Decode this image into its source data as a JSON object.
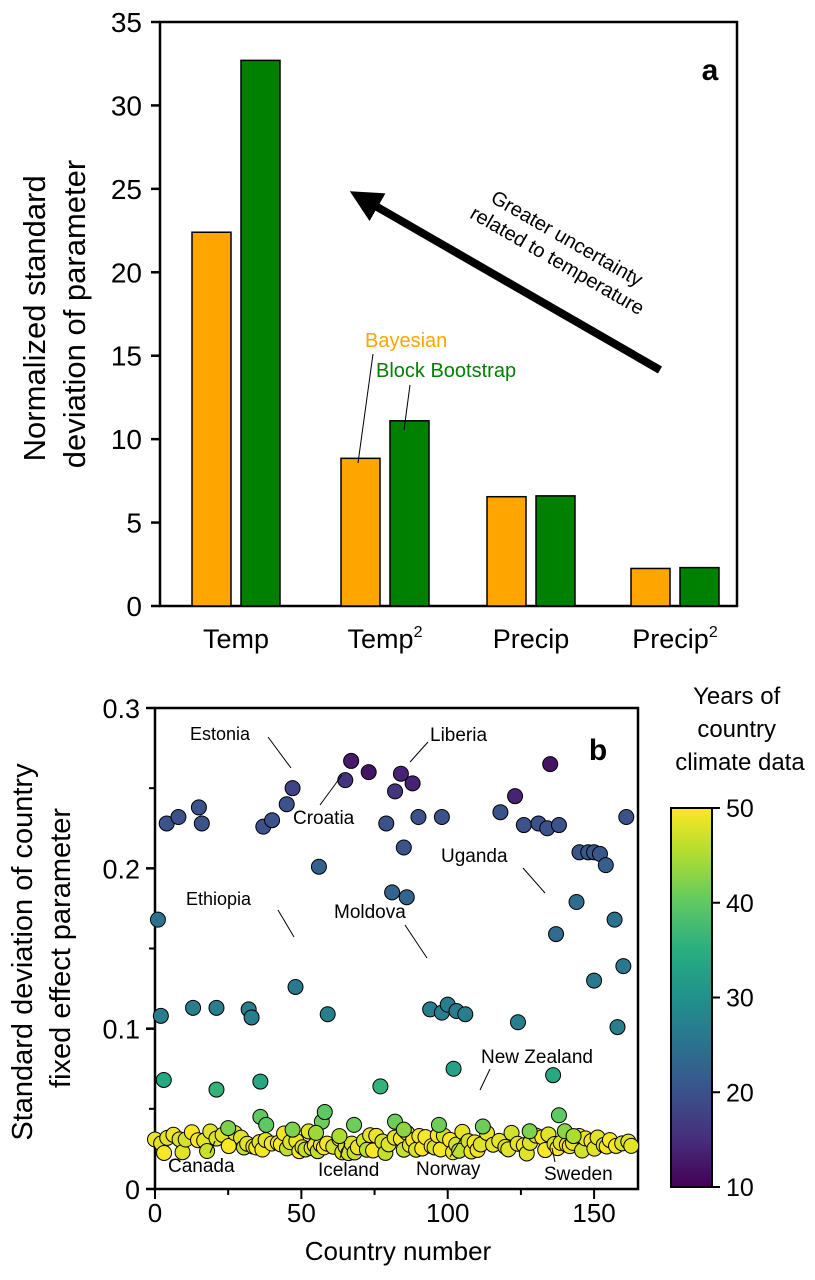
{
  "chart_data": [
    {
      "type": "bar",
      "panel_label": "a",
      "ylabel": [
        "Normalized standard",
        "deviation of parameter"
      ],
      "ylim": [
        0,
        35
      ],
      "yticks": [
        0,
        5,
        10,
        15,
        20,
        25,
        30,
        35
      ],
      "categories": [
        "Temp",
        "Temp",
        "Precip",
        "Precip"
      ],
      "category_superscripts": [
        "",
        "2",
        "",
        "2"
      ],
      "series": [
        {
          "name": "Bayesian",
          "color": "#FFA500",
          "values": [
            22.4,
            8.85,
            6.55,
            2.25
          ]
        },
        {
          "name": "Block Bootstrap",
          "color": "#008000",
          "values": [
            32.7,
            11.1,
            6.6,
            2.3
          ]
        }
      ],
      "annotation": [
        "Greater uncertainty",
        "related to temperature"
      ]
    },
    {
      "type": "scatter",
      "panel_label": "b",
      "xlabel": "Country number",
      "ylabel": [
        "Standard deviation of country",
        "fixed effect parameter"
      ],
      "xlim": [
        0,
        165
      ],
      "ylim": [
        0,
        0.3
      ],
      "xticks": [
        0,
        50,
        100,
        150
      ],
      "yticks": [
        "0",
        "0.1",
        "0.2",
        "0.3"
      ],
      "colorbar": {
        "title": [
          "Years of",
          "country",
          "climate data"
        ],
        "min": 10,
        "max": 50,
        "ticks": [
          10,
          20,
          30,
          40,
          50
        ]
      },
      "points": [
        [
          1,
          0.168,
          25
        ],
        [
          2,
          0.108,
          27
        ],
        [
          3,
          0.068,
          34
        ],
        [
          4,
          0.228,
          20
        ],
        [
          8,
          0.232,
          20
        ],
        [
          15,
          0.238,
          20
        ],
        [
          16,
          0.228,
          20
        ],
        [
          13,
          0.113,
          27
        ],
        [
          21,
          0.113,
          27
        ],
        [
          21,
          0.062,
          36
        ],
        [
          32,
          0.112,
          27
        ],
        [
          33,
          0.107,
          27
        ],
        [
          36,
          0.067,
          34
        ],
        [
          37,
          0.226,
          20
        ],
        [
          40,
          0.23,
          20
        ],
        [
          45,
          0.24,
          20
        ],
        [
          47,
          0.25,
          18
        ],
        [
          48,
          0.126,
          26
        ],
        [
          59,
          0.109,
          27
        ],
        [
          56,
          0.201,
          22
        ],
        [
          65,
          0.255,
          16
        ],
        [
          67,
          0.267,
          13
        ],
        [
          73,
          0.26,
          12
        ],
        [
          79,
          0.228,
          20
        ],
        [
          81,
          0.185,
          23
        ],
        [
          82,
          0.248,
          16
        ],
        [
          84,
          0.259,
          14
        ],
        [
          85,
          0.213,
          20
        ],
        [
          86,
          0.182,
          23
        ],
        [
          88,
          0.253,
          14
        ],
        [
          90,
          0.232,
          20
        ],
        [
          98,
          0.232,
          20
        ],
        [
          77,
          0.064,
          36
        ],
        [
          94,
          0.112,
          27
        ],
        [
          98,
          0.11,
          27
        ],
        [
          100,
          0.115,
          27
        ],
        [
          103,
          0.111,
          27
        ],
        [
          106,
          0.109,
          27
        ],
        [
          102,
          0.075,
          33
        ],
        [
          118,
          0.235,
          20
        ],
        [
          123,
          0.245,
          14
        ],
        [
          124,
          0.104,
          27
        ],
        [
          126,
          0.227,
          20
        ],
        [
          131,
          0.228,
          20
        ],
        [
          134,
          0.225,
          20
        ],
        [
          135,
          0.265,
          12
        ],
        [
          136,
          0.071,
          34
        ],
        [
          138,
          0.227,
          20
        ],
        [
          137,
          0.159,
          24
        ],
        [
          144,
          0.179,
          24
        ],
        [
          145,
          0.21,
          21
        ],
        [
          148,
          0.21,
          21
        ],
        [
          150,
          0.21,
          21
        ],
        [
          152,
          0.209,
          21
        ],
        [
          154,
          0.202,
          22
        ],
        [
          150,
          0.13,
          26
        ],
        [
          157,
          0.168,
          25
        ],
        [
          158,
          0.101,
          27
        ],
        [
          160,
          0.139,
          26
        ],
        [
          161,
          0.232,
          20
        ],
        [
          36,
          0.045,
          40
        ],
        [
          38,
          0.04,
          40
        ],
        [
          25,
          0.038,
          42
        ],
        [
          47,
          0.037,
          42
        ],
        [
          57,
          0.042,
          41
        ],
        [
          58,
          0.048,
          40
        ],
        [
          68,
          0.04,
          41
        ],
        [
          82,
          0.042,
          41
        ],
        [
          97,
          0.04,
          41
        ],
        [
          112,
          0.039,
          41
        ],
        [
          128,
          0.036,
          42
        ],
        [
          138,
          0.046,
          40
        ],
        [
          140,
          0.036,
          43
        ],
        [
          55,
          0.035,
          44
        ],
        [
          63,
          0.033,
          45
        ],
        [
          85,
          0.037,
          43
        ],
        [
          143,
          0.033,
          45
        ]
      ]
    }
  ],
  "labels": {
    "bayesian": "Bayesian",
    "block_bootstrap": "Block Bootstrap",
    "estonia": "Estonia",
    "liberia": "Liberia",
    "croatia": "Croatia",
    "uganda": "Uganda",
    "ethiopia": "Ethiopia",
    "moldova": "Moldova",
    "new_zealand": "New Zealand",
    "canada": "Canada",
    "iceland": "Iceland",
    "norway": "Norway",
    "sweden": "Sweden"
  }
}
